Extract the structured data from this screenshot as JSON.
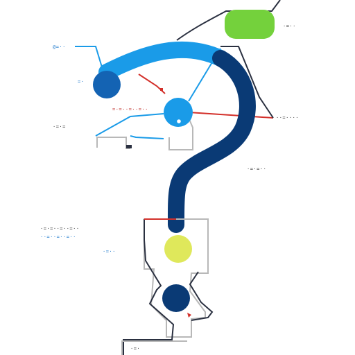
{
  "colors": {
    "accent_blue": "#1a9be8",
    "dark_navy": "#0a3a75",
    "mid_blue": "#1463b3",
    "lime_green": "#74d13c",
    "yellow_green": "#dfe85b",
    "red": "#d3302a",
    "gray": "#b8b8b8",
    "dark_line": "#222833"
  },
  "labels": {
    "top_right": "·=··",
    "top_left": "@=··",
    "left_node": "=·",
    "red_center": "=·=··=··=··",
    "left_box": "·=·=",
    "right_mid": "··=····",
    "right_lower": "·=·=··",
    "bottom_left_1": "·=·=··=··=··",
    "bottom_left_2": "··=··=··=··",
    "bottom_left_3": "·=··",
    "bottom_box": "·=·"
  }
}
